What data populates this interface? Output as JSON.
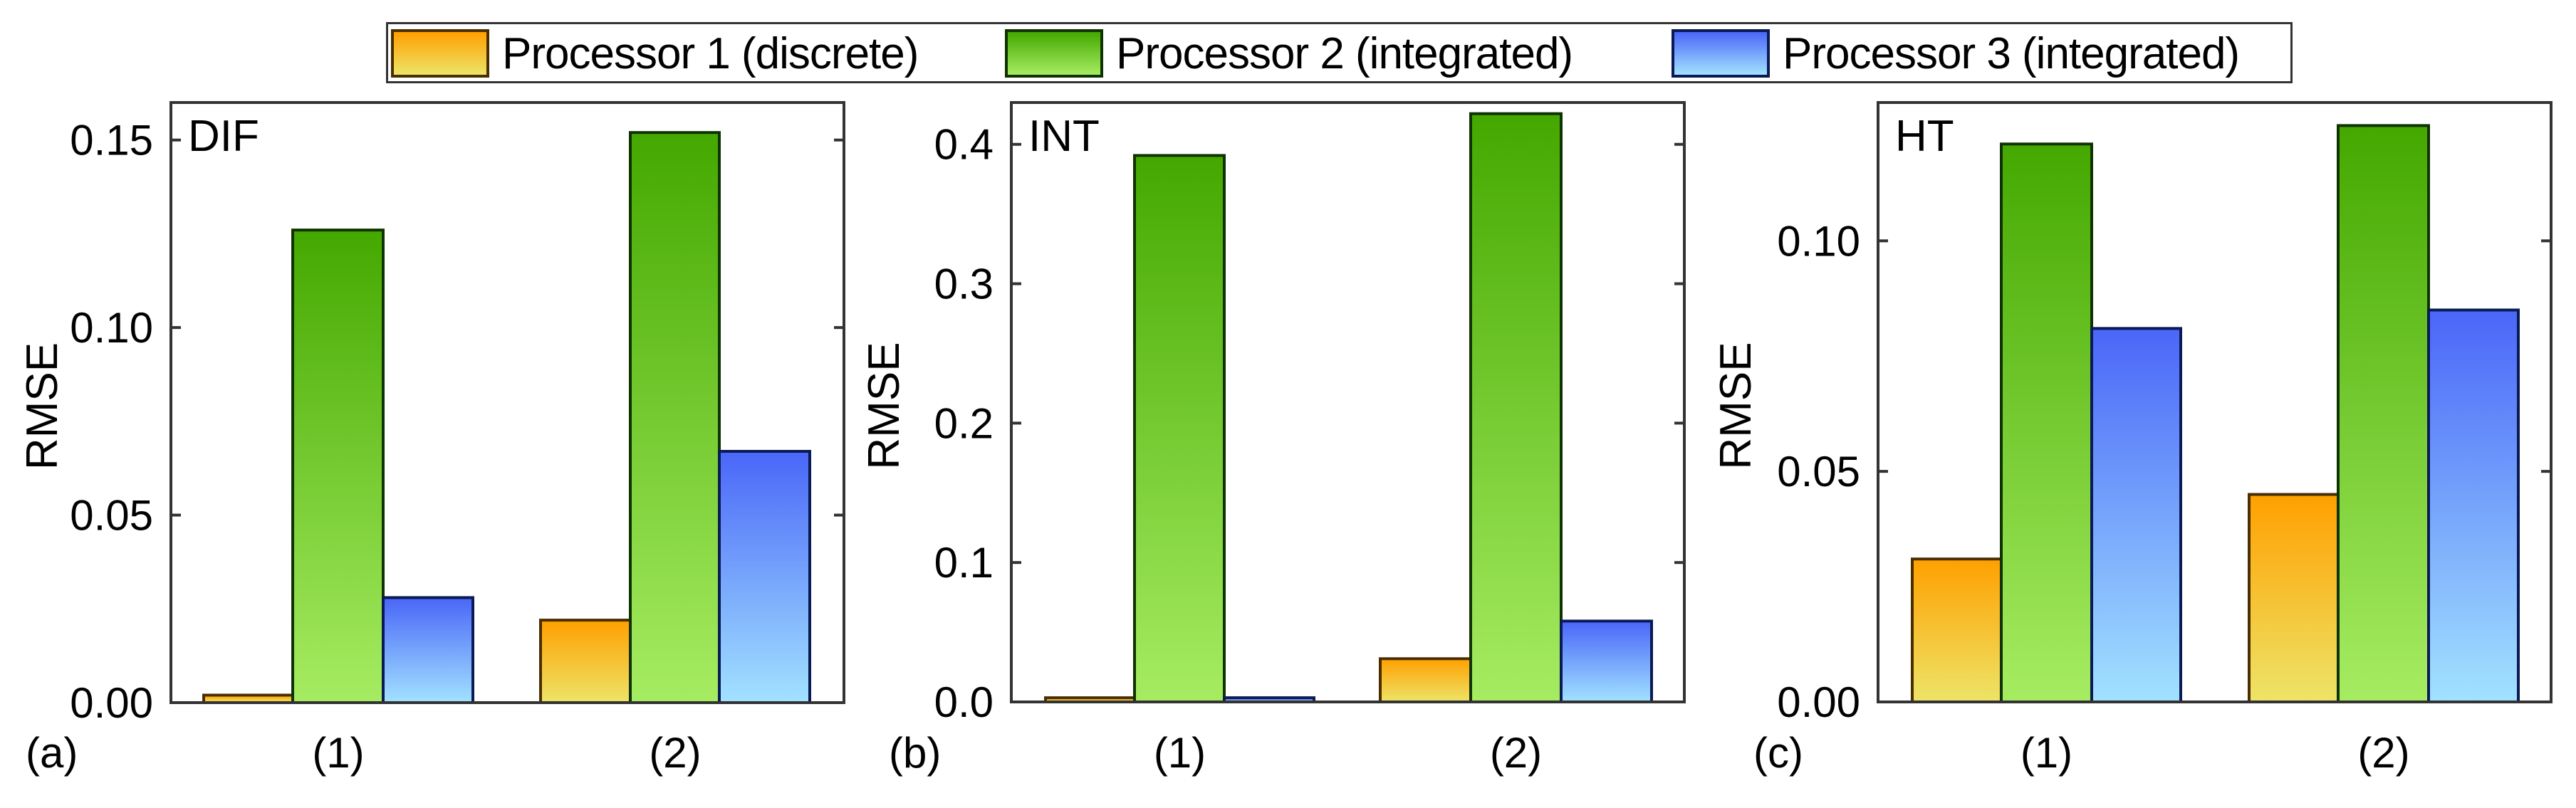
{
  "legend": {
    "items": [
      {
        "label": "Processor 1 (discrete)",
        "color_top": "#FFA000",
        "color_bottom": "#EDE468",
        "border": "#4a2e00"
      },
      {
        "label": "Processor 2 (integrated)",
        "color_top": "#44A800",
        "color_bottom": "#A6EC62",
        "border": "#0f3300"
      },
      {
        "label": "Processor 3 (integrated)",
        "color_top": "#4A66F8",
        "color_bottom": "#A2E2FF",
        "border": "#0a1a55"
      }
    ]
  },
  "chart_data": [
    {
      "type": "bar",
      "panel_label": "(a)",
      "title": "DIF",
      "xlabel": "",
      "ylabel": "RMSE",
      "categories": [
        "(1)",
        "(2)"
      ],
      "series": [
        {
          "name": "Processor 1 (discrete)",
          "values": [
            0.002,
            0.022
          ]
        },
        {
          "name": "Processor 2 (integrated)",
          "values": [
            0.126,
            0.152
          ]
        },
        {
          "name": "Processor 3 (integrated)",
          "values": [
            0.028,
            0.067
          ]
        }
      ],
      "yticks": [
        0.0,
        0.05,
        0.1,
        0.15
      ],
      "ytick_labels": [
        "0.00",
        "0.05",
        "0.10",
        "0.15"
      ],
      "ylim": [
        0,
        0.16
      ],
      "grid": false,
      "legend_position": "top (shared)"
    },
    {
      "type": "bar",
      "panel_label": "(b)",
      "title": "INT",
      "xlabel": "",
      "ylabel": "RMSE",
      "categories": [
        "(1)",
        "(2)"
      ],
      "series": [
        {
          "name": "Processor 1 (discrete)",
          "values": [
            0.003,
            0.031
          ]
        },
        {
          "name": "Processor 2 (integrated)",
          "values": [
            0.392,
            0.422
          ]
        },
        {
          "name": "Processor 3 (integrated)",
          "values": [
            0.003,
            0.058
          ]
        }
      ],
      "yticks": [
        0.0,
        0.1,
        0.2,
        0.3,
        0.4
      ],
      "ytick_labels": [
        "0.0",
        "0.1",
        "0.2",
        "0.3",
        "0.4"
      ],
      "ylim": [
        0,
        0.43
      ],
      "grid": false,
      "legend_position": "top (shared)"
    },
    {
      "type": "bar",
      "panel_label": "(c)",
      "title": "HT",
      "xlabel": "",
      "ylabel": "RMSE",
      "categories": [
        "(1)",
        "(2)"
      ],
      "series": [
        {
          "name": "Processor 1 (discrete)",
          "values": [
            0.031,
            0.045
          ]
        },
        {
          "name": "Processor 2 (integrated)",
          "values": [
            0.121,
            0.125
          ]
        },
        {
          "name": "Processor 3 (integrated)",
          "values": [
            0.081,
            0.085
          ]
        }
      ],
      "yticks": [
        0.0,
        0.05,
        0.1
      ],
      "ytick_labels": [
        "0.00",
        "0.05",
        "0.10"
      ],
      "ylim": [
        0,
        0.13
      ],
      "grid": false,
      "legend_position": "top (shared)"
    }
  ]
}
